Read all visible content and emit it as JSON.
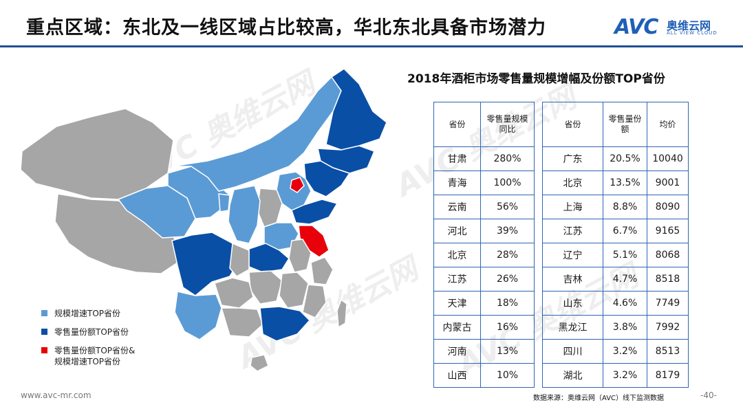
{
  "header": {
    "title": "重点区域：东北及一线区域占比较高，华北东北具备市场潜力",
    "logo_text": "AVC",
    "logo_cn": "奥维云网",
    "logo_en": "ALL VIEW CLOUD"
  },
  "chart": {
    "title": "2018年酒柜市场零售量规模增幅及份额TOP省份"
  },
  "legend": [
    {
      "label": "规模增速TOP省份",
      "color": "#5b9bd5"
    },
    {
      "label": "零售量份额TOP省份",
      "color": "#0a4fa6"
    },
    {
      "label": "零售量份额TOP省份&",
      "label2": "规模增速TOP省份",
      "color": "#e8000b"
    }
  ],
  "map_colors": {
    "growth": "#5b9bd5",
    "share": "#0a4fa6",
    "both": "#e8000b",
    "other": "#a6a6a6"
  },
  "table_left": {
    "headers": [
      "省份",
      "零售量规模",
      "同比"
    ],
    "rows": [
      [
        "甘肃",
        "280%"
      ],
      [
        "青海",
        "100%"
      ],
      [
        "云南",
        "56%"
      ],
      [
        "河北",
        "39%"
      ],
      [
        "北京",
        "28%"
      ],
      [
        "江苏",
        "26%"
      ],
      [
        "天津",
        "18%"
      ],
      [
        "内蒙古",
        "16%"
      ],
      [
        "河南",
        "13%"
      ],
      [
        "山西",
        "10%"
      ]
    ]
  },
  "table_right": {
    "headers": [
      "省份",
      "零售量份",
      "额",
      "均价"
    ],
    "rows": [
      [
        "广东",
        "20.5%",
        "10040"
      ],
      [
        "北京",
        "13.5%",
        "9001"
      ],
      [
        "上海",
        "8.8%",
        "8090"
      ],
      [
        "江苏",
        "6.7%",
        "9165"
      ],
      [
        "辽宁",
        "5.1%",
        "8068"
      ],
      [
        "吉林",
        "4.7%",
        "8518"
      ],
      [
        "山东",
        "4.6%",
        "7749"
      ],
      [
        "黑龙江",
        "3.8%",
        "7992"
      ],
      [
        "四川",
        "3.2%",
        "8513"
      ],
      [
        "湖北",
        "3.2%",
        "8179"
      ]
    ]
  },
  "footer": {
    "website": "www.avc-mr.com",
    "source": "数据来源：奥维云网（AVC）线下监测数据",
    "page": "-40-"
  }
}
